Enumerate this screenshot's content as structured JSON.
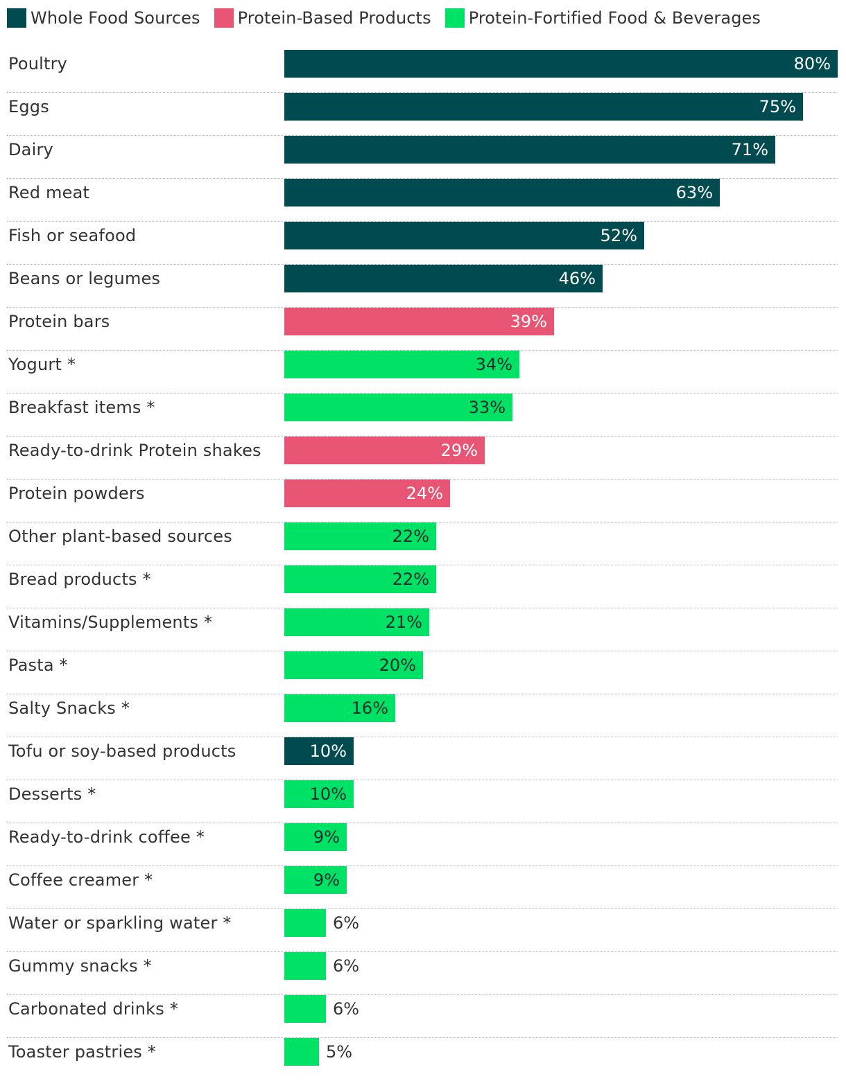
{
  "legend": [
    {
      "label": "Whole Food Sources",
      "color": "#004b50"
    },
    {
      "label": "Protein-Based Products",
      "color": "#e85473"
    },
    {
      "label": "Protein-Fortified Food & Beverages",
      "color": "#00e266"
    }
  ],
  "chart_data": {
    "type": "bar",
    "orientation": "horizontal",
    "title": "",
    "xlabel": "",
    "ylabel": "",
    "xlim": [
      0,
      80
    ],
    "unit": "%",
    "categories": [
      "Poultry",
      "Eggs",
      "Dairy",
      "Red meat",
      "Fish or seafood",
      "Beans or legumes",
      "Protein bars",
      "Yogurt *",
      "Breakfast items *",
      "Ready-to-drink Protein shakes",
      "Protein powders",
      "Other plant-based sources",
      "Bread products *",
      "Vitamins/Supplements *",
      "Pasta *",
      "Salty Snacks *",
      "Tofu or soy-based products",
      "Desserts *",
      "Ready-to-drink coffee *",
      "Coffee creamer *",
      "Water or sparkling water *",
      "Gummy snacks *",
      "Carbonated drinks *",
      "Toaster pastries *"
    ],
    "values": [
      80,
      75,
      71,
      63,
      52,
      46,
      39,
      34,
      33,
      29,
      24,
      22,
      22,
      21,
      20,
      16,
      10,
      10,
      9,
      9,
      6,
      6,
      6,
      5
    ],
    "groups": [
      "Whole Food Sources",
      "Whole Food Sources",
      "Whole Food Sources",
      "Whole Food Sources",
      "Whole Food Sources",
      "Whole Food Sources",
      "Protein-Based Products",
      "Protein-Fortified Food & Beverages",
      "Protein-Fortified Food & Beverages",
      "Protein-Based Products",
      "Protein-Based Products",
      "Protein-Fortified Food & Beverages",
      "Protein-Fortified Food & Beverages",
      "Protein-Fortified Food & Beverages",
      "Protein-Fortified Food & Beverages",
      "Protein-Fortified Food & Beverages",
      "Whole Food Sources",
      "Protein-Fortified Food & Beverages",
      "Protein-Fortified Food & Beverages",
      "Protein-Fortified Food & Beverages",
      "Protein-Fortified Food & Beverages",
      "Protein-Fortified Food & Beverages",
      "Protein-Fortified Food & Beverages",
      "Protein-Fortified Food & Beverages"
    ],
    "value_labels": [
      "80%",
      "75%",
      "71%",
      "63%",
      "52%",
      "46%",
      "39%",
      "34%",
      "33%",
      "29%",
      "24%",
      "22%",
      "22%",
      "21%",
      "20%",
      "16%",
      "10%",
      "10%",
      "9%",
      "9%",
      "6%",
      "6%",
      "6%",
      "5%"
    ],
    "legend_position": "top-left",
    "grid": false
  }
}
